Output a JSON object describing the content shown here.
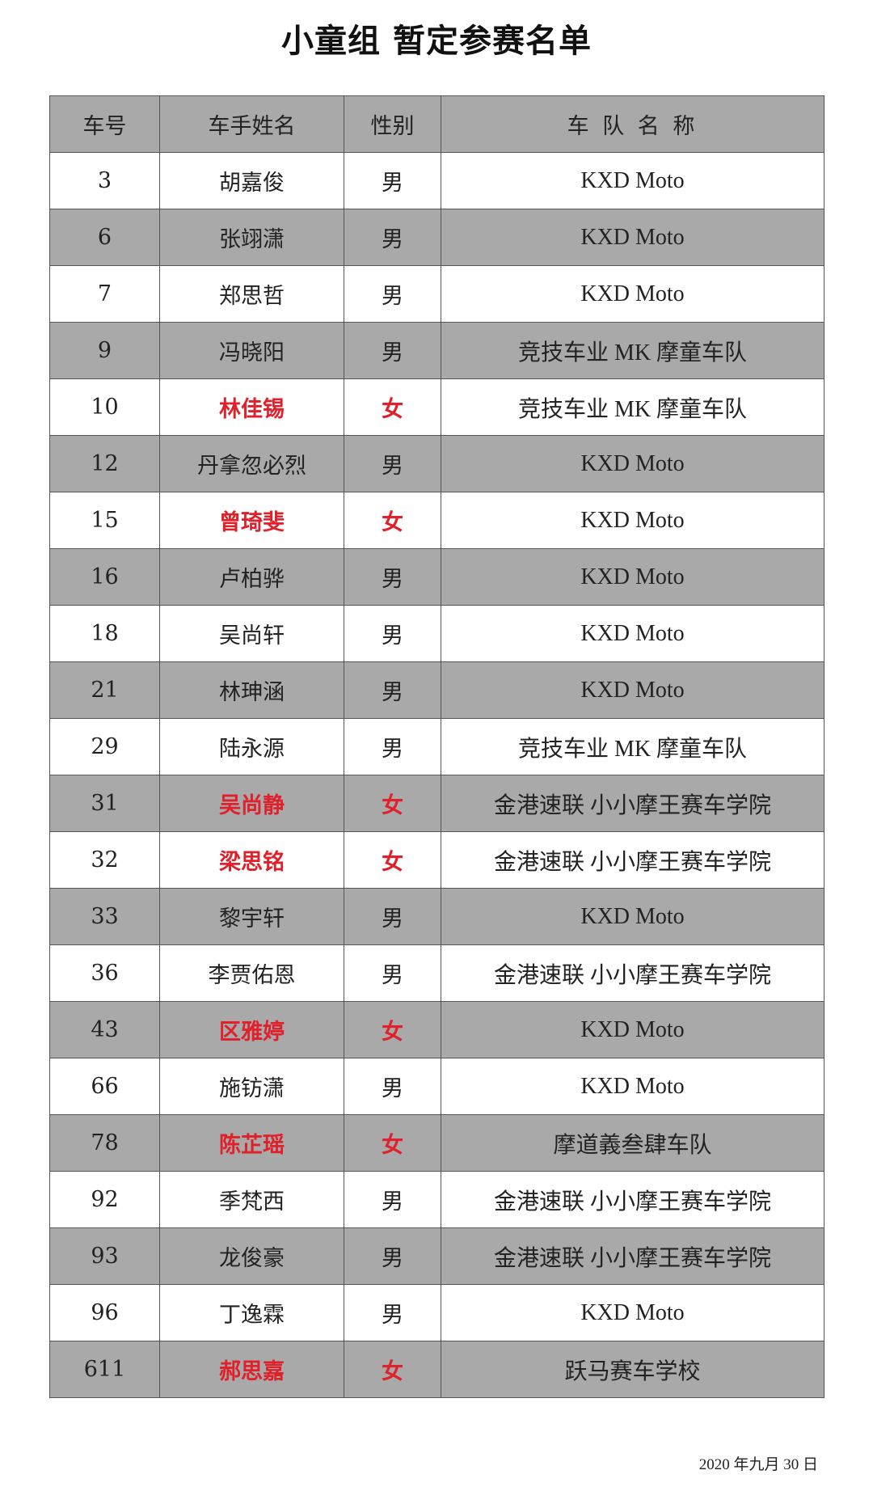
{
  "title": "小童组  暂定参赛名单",
  "colors": {
    "row_gray": "#a9a9a9",
    "female_red": "#e0202a"
  },
  "table": {
    "headers": [
      "车号",
      "车手姓名",
      "性别",
      "车 队 名 称"
    ],
    "rows": [
      {
        "no": "3",
        "name": "胡嘉俊",
        "gender": "男",
        "team": "KXD Moto"
      },
      {
        "no": "6",
        "name": "张翊潇",
        "gender": "男",
        "team": "KXD Moto"
      },
      {
        "no": "7",
        "name": "郑思哲",
        "gender": "男",
        "team": "KXD Moto"
      },
      {
        "no": "9",
        "name": "冯晓阳",
        "gender": "男",
        "team": "竞技车业  MK 摩童车队"
      },
      {
        "no": "10",
        "name": "林佳锡",
        "gender": "女",
        "team": "竞技车业  MK 摩童车队"
      },
      {
        "no": "12",
        "name": "丹拿忽必烈",
        "gender": "男",
        "team": "KXD Moto"
      },
      {
        "no": "15",
        "name": "曾琦斐",
        "gender": "女",
        "team": "KXD Moto"
      },
      {
        "no": "16",
        "name": "卢柏骅",
        "gender": "男",
        "team": "KXD Moto"
      },
      {
        "no": "18",
        "name": "吴尚轩",
        "gender": "男",
        "team": "KXD Moto"
      },
      {
        "no": "21",
        "name": "林珅涵",
        "gender": "男",
        "team": "KXD Moto"
      },
      {
        "no": "29",
        "name": "陆永源",
        "gender": "男",
        "team": "竞技车业  MK 摩童车队"
      },
      {
        "no": "31",
        "name": "吴尚静",
        "gender": "女",
        "team": "金港速联  小小摩王赛车学院"
      },
      {
        "no": "32",
        "name": "梁思铭",
        "gender": "女",
        "team": "金港速联  小小摩王赛车学院"
      },
      {
        "no": "33",
        "name": "黎宇轩",
        "gender": "男",
        "team": "KXD Moto"
      },
      {
        "no": "36",
        "name": "李贾佑恩",
        "gender": "男",
        "team": "金港速联  小小摩王赛车学院"
      },
      {
        "no": "43",
        "name": "区雅婷",
        "gender": "女",
        "team": "KXD Moto"
      },
      {
        "no": "66",
        "name": "施钫潇",
        "gender": "男",
        "team": "KXD Moto"
      },
      {
        "no": "78",
        "name": "陈芷瑶",
        "gender": "女",
        "team": "摩道義叁肆车队"
      },
      {
        "no": "92",
        "name": "季梵西",
        "gender": "男",
        "team": "金港速联  小小摩王赛车学院"
      },
      {
        "no": "93",
        "name": "龙俊豪",
        "gender": "男",
        "team": "金港速联  小小摩王赛车学院"
      },
      {
        "no": "96",
        "name": "丁逸霖",
        "gender": "男",
        "team": "KXD Moto"
      },
      {
        "no": "611",
        "name": "郝思嘉",
        "gender": "女",
        "team": "跃马赛车学校"
      }
    ]
  },
  "date": "2020 年九月 30 日"
}
